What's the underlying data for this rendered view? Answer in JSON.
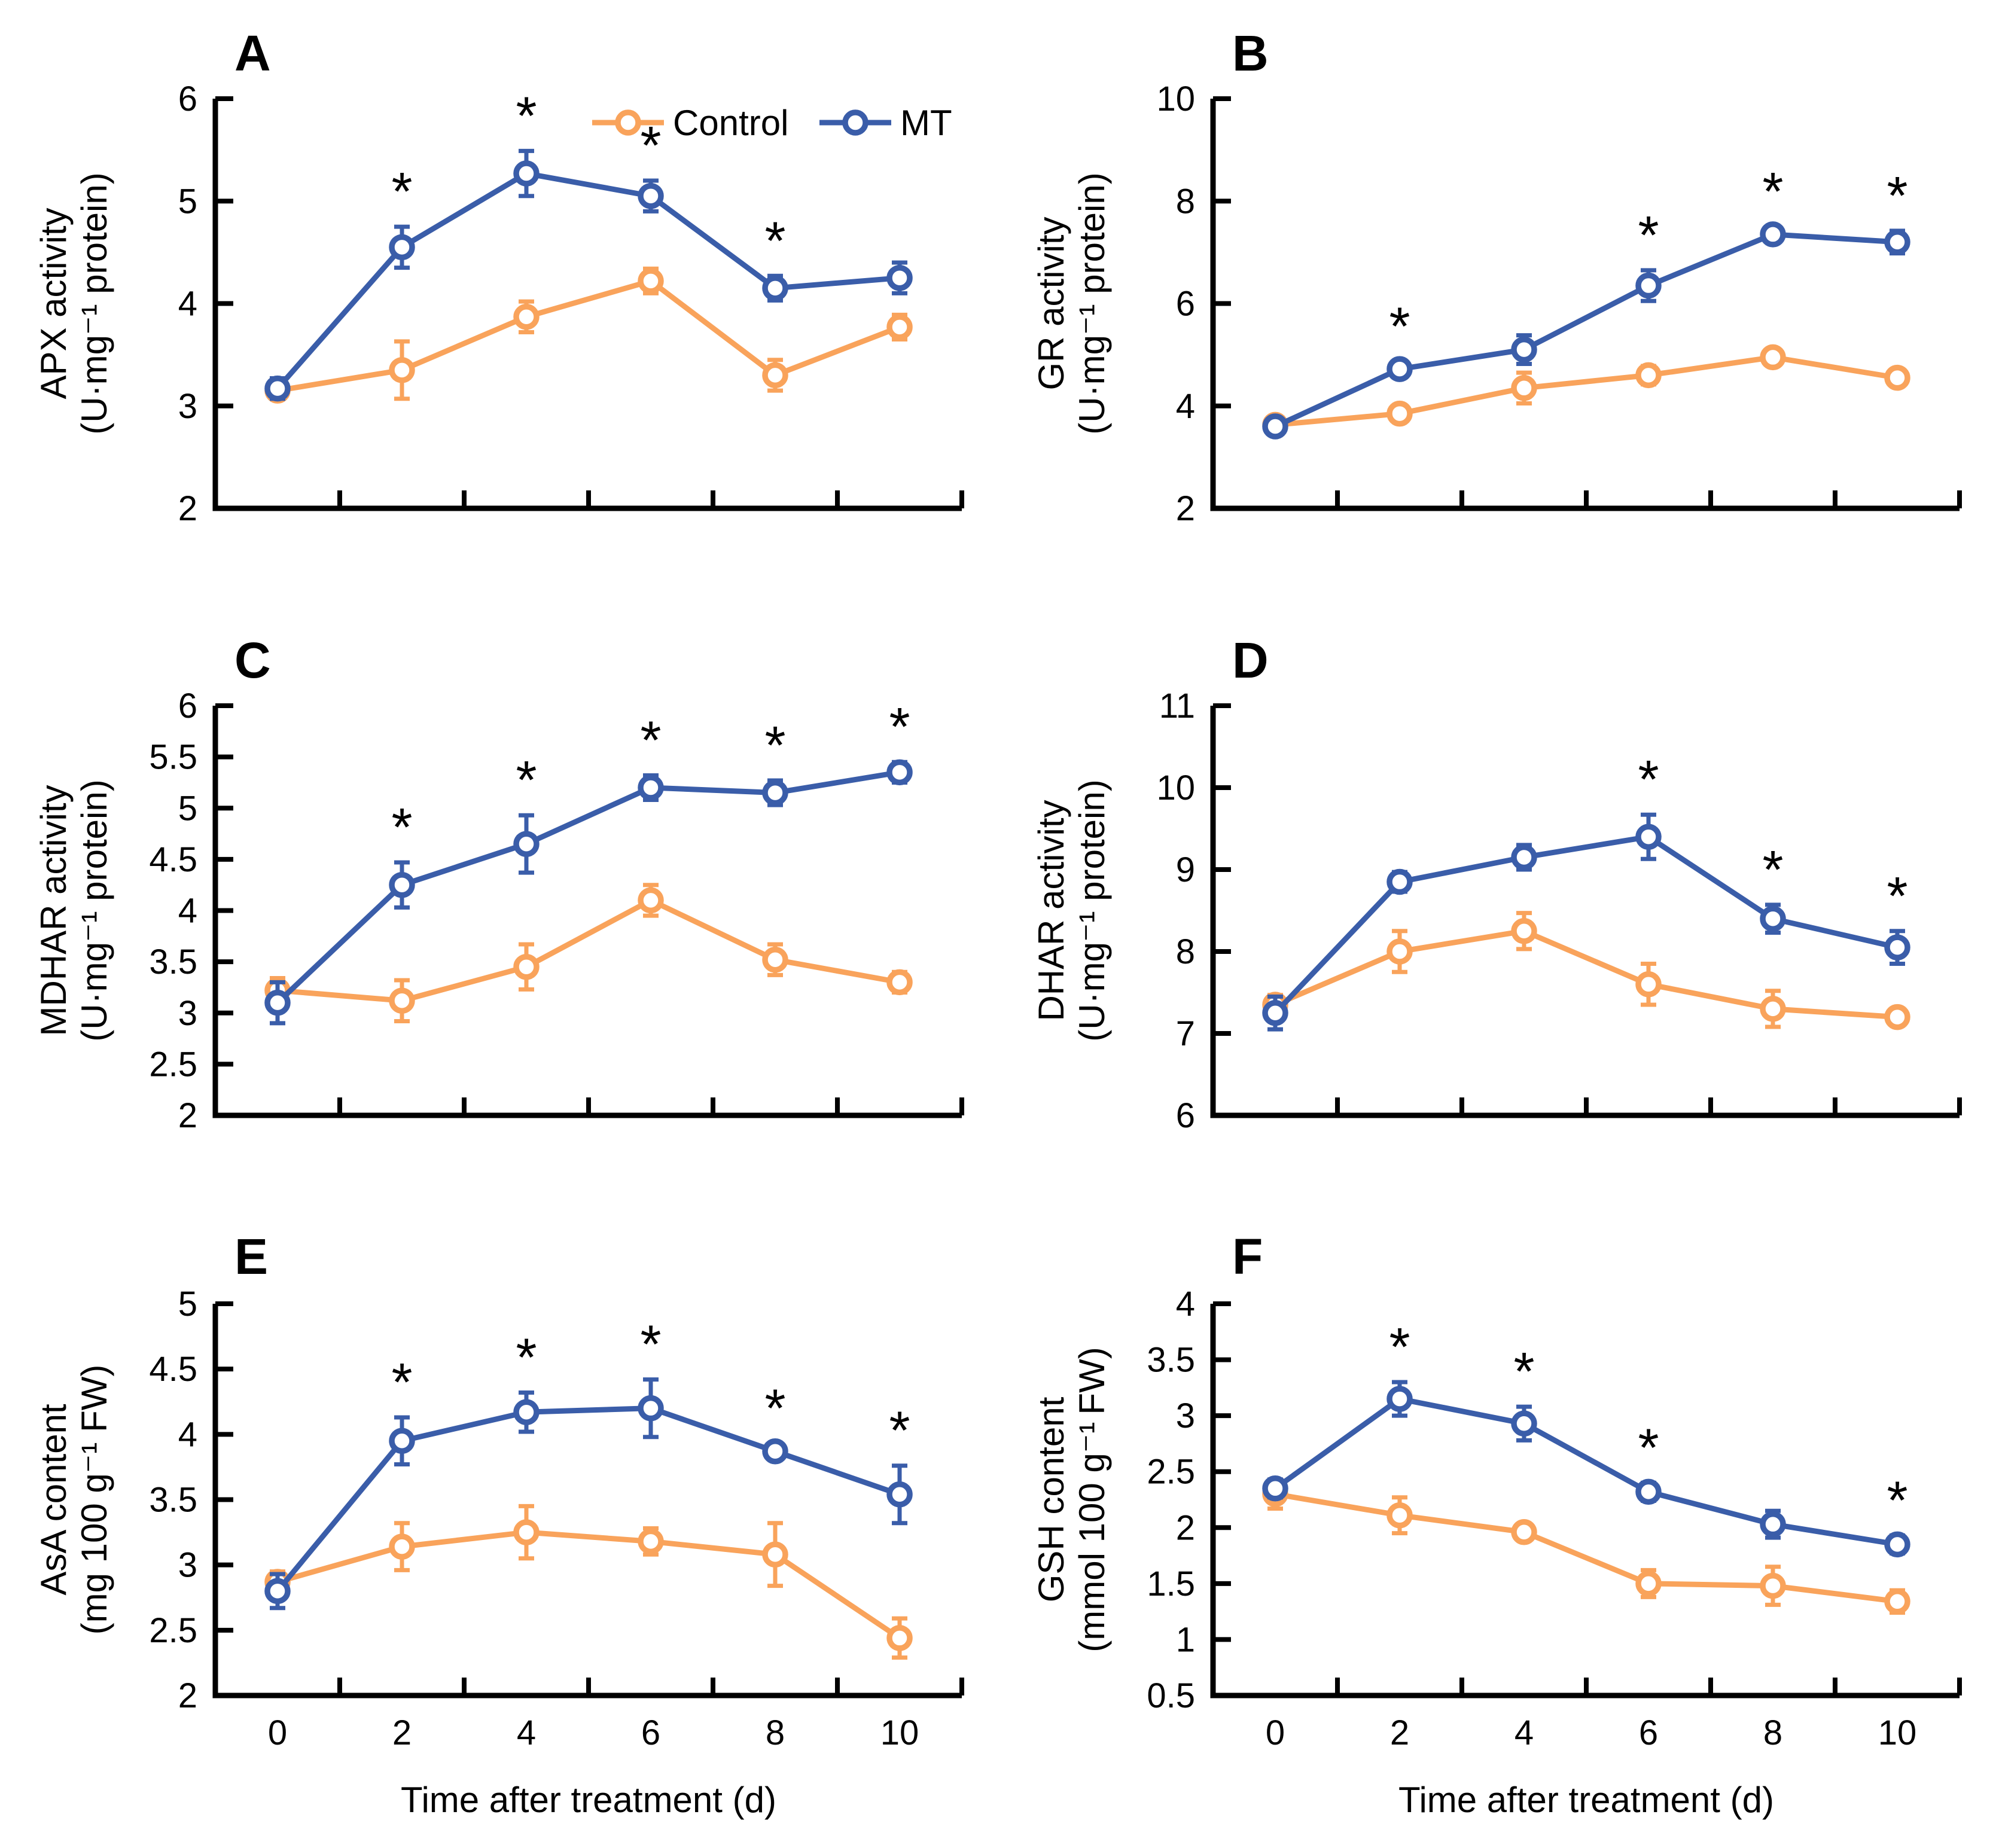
{
  "figure": {
    "x_axis_label": "Time after treatment (d)",
    "x_tick_labels": [
      "0",
      "2",
      "4",
      "6",
      "8",
      "10"
    ],
    "x_tick_values": [
      0,
      2,
      4,
      6,
      8,
      10
    ],
    "significance_symbol": "*",
    "legend": {
      "items": [
        {
          "label": "Control",
          "color_key": "control"
        },
        {
          "label": "MT",
          "color_key": "mt"
        }
      ]
    },
    "colors": {
      "control": "#F9A35B",
      "mt": "#3A5DA9",
      "axis": "#000000",
      "marker_fill": "#FFFFFF",
      "significance": "#000000"
    }
  },
  "chart_data": [
    {
      "panel_label": "A",
      "type": "line",
      "ylabel_lines": [
        "APX activity",
        "(U·mg⁻¹ protein)"
      ],
      "ylim": [
        2,
        6
      ],
      "yticks": [
        2,
        3,
        4,
        5,
        6
      ],
      "ytick_labels": [
        "2",
        "3",
        "4",
        "5",
        "6"
      ],
      "x_days": [
        0,
        2,
        4,
        6,
        8,
        10
      ],
      "series": [
        {
          "name": "Control",
          "values": [
            3.15,
            3.35,
            3.87,
            4.22,
            3.3,
            3.77
          ],
          "errors": [
            0.08,
            0.28,
            0.15,
            0.12,
            0.15,
            0.12
          ]
        },
        {
          "name": "MT",
          "values": [
            3.17,
            4.55,
            5.27,
            5.05,
            4.15,
            4.25
          ],
          "errors": [
            0.1,
            0.2,
            0.22,
            0.15,
            0.12,
            0.15
          ]
        }
      ],
      "significant_days": [
        2,
        4,
        6,
        8
      ],
      "has_legend": true,
      "has_x_labels": false
    },
    {
      "panel_label": "B",
      "type": "line",
      "ylabel_lines": [
        "GR activity",
        "(U·mg⁻¹ protein)"
      ],
      "ylim": [
        2,
        10
      ],
      "yticks": [
        2,
        4,
        6,
        8,
        10
      ],
      "ytick_labels": [
        "2",
        "4",
        "6",
        "8",
        "10"
      ],
      "x_days": [
        0,
        2,
        4,
        6,
        8,
        10
      ],
      "series": [
        {
          "name": "Control",
          "values": [
            3.63,
            3.85,
            4.35,
            4.6,
            4.95,
            4.55
          ],
          "errors": [
            0.12,
            0.15,
            0.3,
            0.18,
            0.12,
            0.15
          ]
        },
        {
          "name": "MT",
          "values": [
            3.6,
            4.72,
            5.1,
            6.35,
            7.35,
            7.2
          ],
          "errors": [
            0.15,
            0.15,
            0.28,
            0.3,
            0.15,
            0.22
          ]
        }
      ],
      "significant_days": [
        2,
        6,
        8,
        10
      ],
      "has_legend": false,
      "has_x_labels": false
    },
    {
      "panel_label": "C",
      "type": "line",
      "ylabel_lines": [
        "MDHAR activity",
        "(U·mg⁻¹ protein)"
      ],
      "ylim": [
        2,
        6
      ],
      "yticks": [
        2,
        2.5,
        3,
        3.5,
        4,
        4.5,
        5,
        5.5,
        6
      ],
      "ytick_labels": [
        "2",
        "2.5",
        "3",
        "3.5",
        "4",
        "4.5",
        "5",
        "5.5",
        "6"
      ],
      "x_days": [
        0,
        2,
        4,
        6,
        8,
        10
      ],
      "series": [
        {
          "name": "Control",
          "values": [
            3.22,
            3.12,
            3.45,
            4.1,
            3.52,
            3.3
          ],
          "errors": [
            0.12,
            0.2,
            0.22,
            0.15,
            0.15,
            0.1
          ]
        },
        {
          "name": "MT",
          "values": [
            3.1,
            4.25,
            4.65,
            5.2,
            5.15,
            5.35
          ],
          "errors": [
            0.2,
            0.22,
            0.28,
            0.12,
            0.12,
            0.1
          ]
        }
      ],
      "significant_days": [
        2,
        4,
        6,
        8,
        10
      ],
      "has_legend": false,
      "has_x_labels": false
    },
    {
      "panel_label": "D",
      "type": "line",
      "ylabel_lines": [
        "DHAR activity",
        "(U·mg⁻¹ protein)"
      ],
      "ylim": [
        6,
        11
      ],
      "yticks": [
        6,
        7,
        8,
        9,
        10,
        11
      ],
      "ytick_labels": [
        "6",
        "7",
        "8",
        "9",
        "10",
        "11"
      ],
      "x_days": [
        0,
        2,
        4,
        6,
        8,
        10
      ],
      "series": [
        {
          "name": "Control",
          "values": [
            7.35,
            8.0,
            8.25,
            7.6,
            7.3,
            7.2
          ],
          "errors": [
            0.12,
            0.25,
            0.22,
            0.25,
            0.22,
            0.08
          ]
        },
        {
          "name": "MT",
          "values": [
            7.25,
            8.85,
            9.15,
            9.4,
            8.4,
            8.05
          ],
          "errors": [
            0.2,
            0.12,
            0.15,
            0.27,
            0.17,
            0.2
          ]
        }
      ],
      "significant_days": [
        6,
        8,
        10
      ],
      "has_legend": false,
      "has_x_labels": false
    },
    {
      "panel_label": "E",
      "type": "line",
      "ylabel_lines": [
        "AsA content",
        "(mg 100 g⁻¹ FW)"
      ],
      "ylim": [
        2,
        5
      ],
      "yticks": [
        2,
        2.5,
        3,
        3.5,
        4,
        4.5,
        5
      ],
      "ytick_labels": [
        "2",
        "2.5",
        "3",
        "3.5",
        "4",
        "4.5",
        "5"
      ],
      "x_days": [
        0,
        2,
        4,
        6,
        8,
        10
      ],
      "series": [
        {
          "name": "Control",
          "values": [
            2.87,
            3.14,
            3.25,
            3.18,
            3.08,
            2.44
          ],
          "errors": [
            0.08,
            0.18,
            0.2,
            0.1,
            0.24,
            0.15
          ]
        },
        {
          "name": "MT",
          "values": [
            2.8,
            3.95,
            4.17,
            4.2,
            3.87,
            3.54
          ],
          "errors": [
            0.13,
            0.18,
            0.15,
            0.22,
            0.06,
            0.22
          ]
        }
      ],
      "significant_days": [
        2,
        4,
        6,
        8,
        10
      ],
      "has_legend": false,
      "has_x_labels": true
    },
    {
      "panel_label": "F",
      "type": "line",
      "ylabel_lines": [
        "GSH content",
        "(mmol 100 g⁻¹ FW)"
      ],
      "ylim": [
        0.5,
        4
      ],
      "yticks": [
        0.5,
        1,
        1.5,
        2,
        2.5,
        3,
        3.5,
        4
      ],
      "ytick_labels": [
        "0.5",
        "1",
        "1.5",
        "2",
        "2.5",
        "3",
        "3.5",
        "4"
      ],
      "x_days": [
        0,
        2,
        4,
        6,
        8,
        10
      ],
      "series": [
        {
          "name": "Control",
          "values": [
            2.3,
            2.11,
            1.96,
            1.5,
            1.48,
            1.34
          ],
          "errors": [
            0.13,
            0.16,
            0.07,
            0.12,
            0.17,
            0.1
          ]
        },
        {
          "name": "MT",
          "values": [
            2.35,
            3.15,
            2.93,
            2.32,
            2.03,
            1.85
          ],
          "errors": [
            0.08,
            0.15,
            0.15,
            0.08,
            0.12,
            0.08
          ]
        }
      ],
      "significant_days": [
        2,
        4,
        6,
        10
      ],
      "has_legend": false,
      "has_x_labels": true
    }
  ]
}
